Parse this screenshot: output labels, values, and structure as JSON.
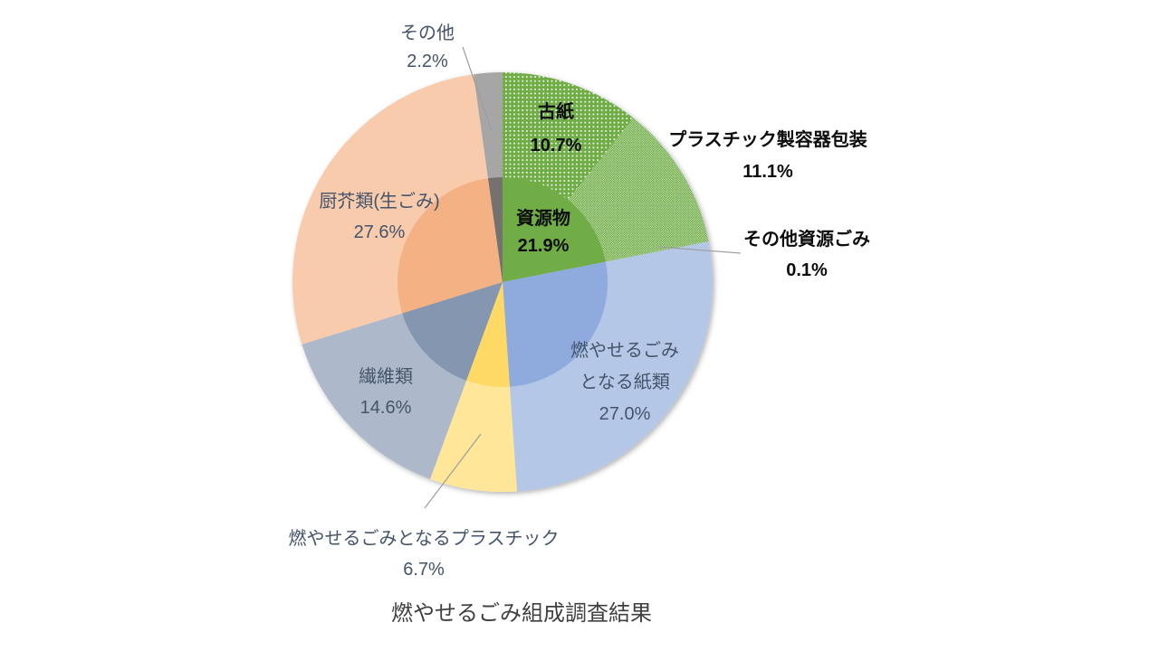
{
  "palette": {
    "background": "#FFFFFF",
    "leader_line": "#9D9D9D",
    "label_text": "#44546A",
    "emphasis_text": "#0D0D0D",
    "title_text": "#404040"
  },
  "chart_data": {
    "type": "pie",
    "subtype": "sunburst-two-ring",
    "title": "燃やせるごみ組成調査結果",
    "units": "%",
    "legend": "none",
    "start_angle_deg": 0,
    "direction": "clockwise",
    "rings": {
      "inner": [
        {
          "label": "資源物",
          "value": 21.9,
          "color": "#70AD47"
        },
        {
          "label": "燃やせるごみとなる紙類",
          "value": 27.0,
          "color": "#8FAADC"
        },
        {
          "label": "燃やせるごみとなるプラスチック",
          "value": 6.7,
          "color": "#FFD966"
        },
        {
          "label": "繊維類",
          "value": 14.6,
          "color": "#8496B0"
        },
        {
          "label": "厨芥類(生ごみ)",
          "value": 27.6,
          "color": "#F4B183"
        },
        {
          "label": "その他",
          "value": 2.2,
          "color": "#767171"
        }
      ],
      "outer": [
        {
          "label": "古紙",
          "value": 10.7,
          "color": "#70AD47",
          "pattern": "dots-sparse"
        },
        {
          "label": "プラスチック製容器包装",
          "value": 11.1,
          "color": "#70AD47",
          "pattern": "dots-dense"
        },
        {
          "label": "その他資源ごみ",
          "value": 0.1,
          "color": "#70AD47",
          "pattern": "dots-dense"
        },
        {
          "label": "燃やせるごみとなる紙類",
          "value": 27.0,
          "color": "#B4C7E7"
        },
        {
          "label": "燃やせるごみとなるプラスチック",
          "value": 6.7,
          "color": "#FFE699"
        },
        {
          "label": "繊維類",
          "value": 14.6,
          "color": "#ADB9CA"
        },
        {
          "label": "厨芥類(生ごみ)",
          "value": 27.6,
          "color": "#F8CBAD"
        },
        {
          "label": "その他",
          "value": 2.2,
          "color": "#A6A6A6"
        }
      ]
    }
  },
  "labels": {
    "sonota_top": {
      "name": "その他",
      "pct": "2.2%"
    },
    "koshi": {
      "name": "古紙",
      "pct": "10.7%"
    },
    "pla_container": {
      "name": "プラスチック製容器包装",
      "pct": "11.1%"
    },
    "sonota_shigen": {
      "name": "その他資源ごみ",
      "pct": "0.1%"
    },
    "shigenbutsu": {
      "name": "資源物",
      "pct": "21.9%"
    },
    "kamirui": {
      "line1": "燃やせるごみ",
      "line2": "となる紙類",
      "pct": "27.0%"
    },
    "pla_burnable": {
      "name": "燃やせるごみとなるプラスチック",
      "pct": "6.7%"
    },
    "seni": {
      "name": "繊維類",
      "pct": "14.6%"
    },
    "chukai": {
      "name": "厨芥類(生ごみ)",
      "pct": "27.6%"
    }
  }
}
